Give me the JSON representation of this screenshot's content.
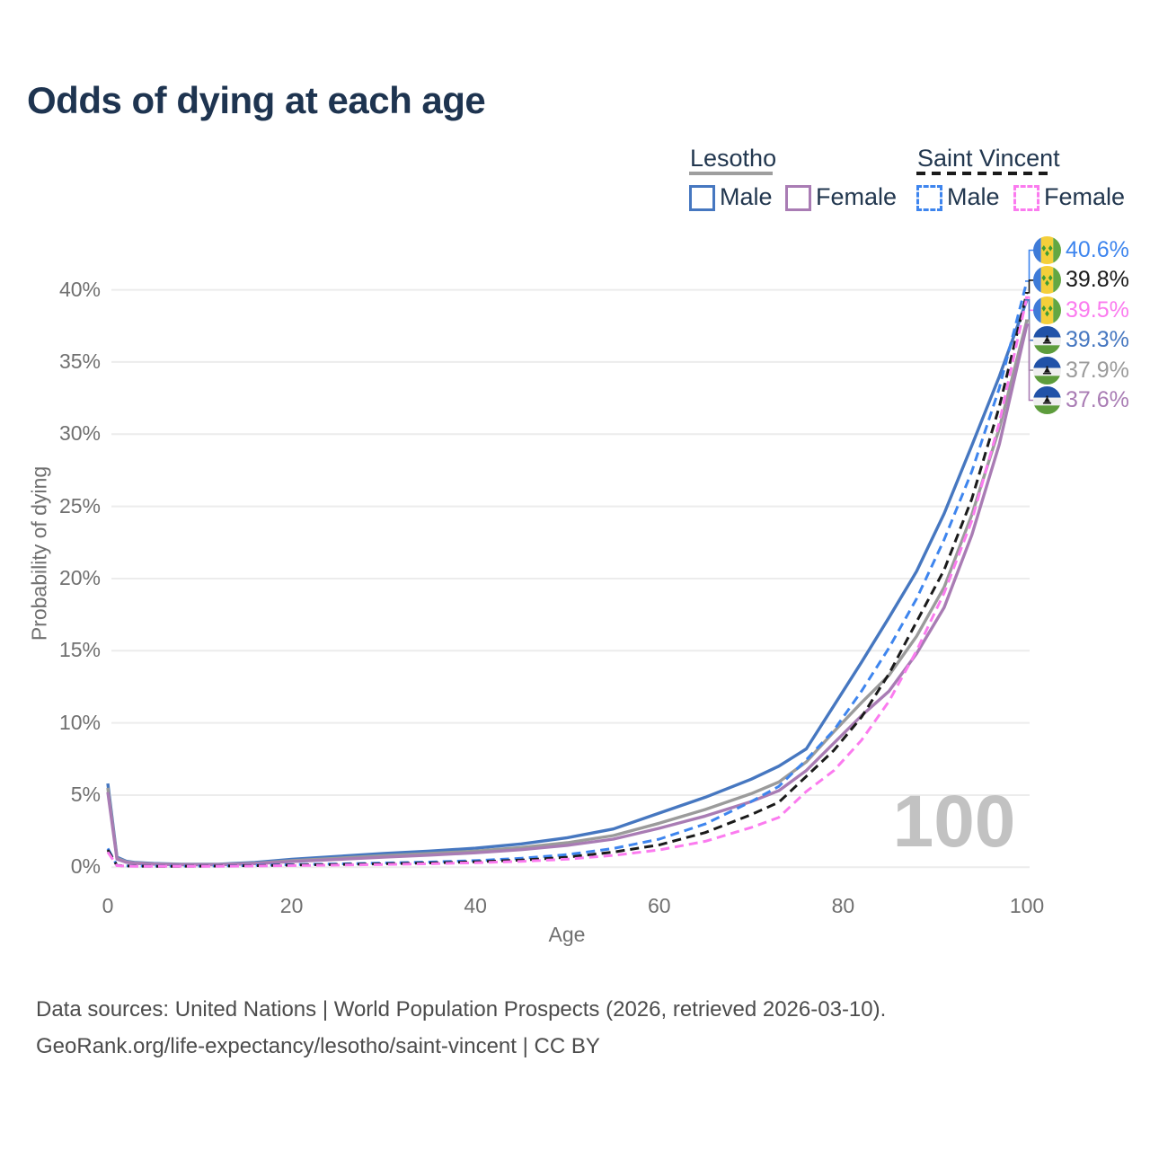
{
  "title": "Odds of dying at each age",
  "legend": {
    "groups": [
      {
        "label": "Lesotho",
        "line_style": "solid",
        "underline_color": "#9E9E9E",
        "items": [
          {
            "label": "Male",
            "color": "#4677C0"
          },
          {
            "label": "Female",
            "color": "#A97CB4"
          }
        ]
      },
      {
        "label": "Saint Vincent",
        "line_style": "dashed",
        "underline_color": "#1A1A1A",
        "items": [
          {
            "label": "Male",
            "color": "#3E85EE"
          },
          {
            "label": "Female",
            "color": "#FB7BEF"
          }
        ]
      }
    ]
  },
  "watermark": "100",
  "footer": {
    "line1": "Data sources: United Nations | World Population Prospects (2026, retrieved 2026-03-10).",
    "line2": "GeoRank.org/life-expectancy/lesotho/saint-vincent | CC BY"
  },
  "chart_data": {
    "type": "line",
    "title": "Odds of dying at each age",
    "xlabel": "Age",
    "ylabel": "Probability of dying",
    "xlim": [
      0,
      100
    ],
    "ylim": [
      0,
      42
    ],
    "x_ticks": [
      0,
      20,
      40,
      60,
      80,
      100
    ],
    "y_ticks": [
      0,
      5,
      10,
      15,
      20,
      25,
      30,
      35,
      40
    ],
    "y_tick_suffix": "%",
    "grid": "horizontal",
    "grid_color": "#ECECEC",
    "legend_position": "top-right",
    "x": [
      0,
      1,
      2,
      3,
      5,
      8,
      12,
      16,
      20,
      25,
      30,
      35,
      40,
      45,
      50,
      55,
      60,
      65,
      70,
      73,
      76,
      79,
      82,
      85,
      88,
      91,
      94,
      97,
      100
    ],
    "series": [
      {
        "id": "lesotho-male",
        "name": "Lesotho Male",
        "country": "Lesotho",
        "sex": "male",
        "flag": "lesotho",
        "dashed": false,
        "color": "#4677C0",
        "end_label": "39.3%",
        "values": [
          5.8,
          0.7,
          0.42,
          0.33,
          0.26,
          0.21,
          0.21,
          0.33,
          0.55,
          0.75,
          0.95,
          1.12,
          1.32,
          1.62,
          2.05,
          2.65,
          3.75,
          4.85,
          6.1,
          7.0,
          8.2,
          11.2,
          14.2,
          17.3,
          20.5,
          24.5,
          29.2,
          34.0,
          39.3
        ]
      },
      {
        "id": "lesotho-all",
        "name": "Lesotho",
        "country": "Lesotho",
        "sex": "all",
        "flag": "lesotho",
        "dashed": false,
        "color": "#9B9B9B",
        "end_label": "37.9%",
        "values": [
          5.5,
          0.62,
          0.38,
          0.3,
          0.23,
          0.19,
          0.19,
          0.28,
          0.46,
          0.62,
          0.8,
          0.95,
          1.12,
          1.37,
          1.7,
          2.2,
          3.05,
          4.0,
          5.1,
          5.9,
          7.3,
          9.4,
          11.4,
          13.3,
          16.0,
          19.4,
          24.4,
          30.4,
          37.9
        ]
      },
      {
        "id": "lesotho-female",
        "name": "Lesotho Female",
        "country": "Lesotho",
        "sex": "female",
        "flag": "lesotho",
        "dashed": false,
        "color": "#A97CB4",
        "end_label": "37.6%",
        "values": [
          5.2,
          0.56,
          0.34,
          0.27,
          0.21,
          0.17,
          0.17,
          0.25,
          0.4,
          0.54,
          0.7,
          0.84,
          1.0,
          1.22,
          1.52,
          1.95,
          2.7,
          3.55,
          4.55,
          5.3,
          6.7,
          8.6,
          10.5,
          12.2,
          14.8,
          18.0,
          23.0,
          29.3,
          37.6
        ]
      },
      {
        "id": "saint-vincent-male",
        "name": "Saint Vincent Male",
        "country": "Saint Vincent",
        "sex": "male",
        "flag": "saint-vincent",
        "dashed": true,
        "color": "#3E85EE",
        "end_label": "40.6%",
        "values": [
          1.3,
          0.13,
          0.1,
          0.09,
          0.08,
          0.08,
          0.09,
          0.13,
          0.18,
          0.23,
          0.29,
          0.36,
          0.46,
          0.62,
          0.88,
          1.3,
          1.95,
          3.0,
          4.55,
          5.6,
          7.45,
          9.5,
          12.2,
          15.2,
          18.6,
          22.7,
          27.4,
          33.2,
          40.6
        ]
      },
      {
        "id": "saint-vincent-all",
        "name": "Saint Vincent",
        "country": "Saint Vincent",
        "sex": "all",
        "flag": "saint-vincent",
        "dashed": true,
        "color": "#1A1A1A",
        "end_label": "39.8%",
        "values": [
          1.2,
          0.12,
          0.09,
          0.08,
          0.07,
          0.07,
          0.08,
          0.11,
          0.15,
          0.19,
          0.24,
          0.3,
          0.38,
          0.5,
          0.7,
          1.05,
          1.55,
          2.4,
          3.65,
          4.5,
          6.3,
          8.1,
          10.4,
          13.4,
          17.0,
          20.6,
          25.5,
          31.9,
          39.8
        ]
      },
      {
        "id": "saint-vincent-female",
        "name": "Saint Vincent Female",
        "country": "Saint Vincent",
        "sex": "female",
        "flag": "saint-vincent",
        "dashed": true,
        "color": "#FB7BEF",
        "end_label": "39.5%",
        "values": [
          1.05,
          0.11,
          0.08,
          0.07,
          0.06,
          0.06,
          0.07,
          0.09,
          0.12,
          0.15,
          0.19,
          0.24,
          0.31,
          0.41,
          0.56,
          0.82,
          1.2,
          1.8,
          2.75,
          3.45,
          5.25,
          6.7,
          8.8,
          11.5,
          15.0,
          19.0,
          24.0,
          30.8,
          39.5
        ]
      }
    ]
  }
}
